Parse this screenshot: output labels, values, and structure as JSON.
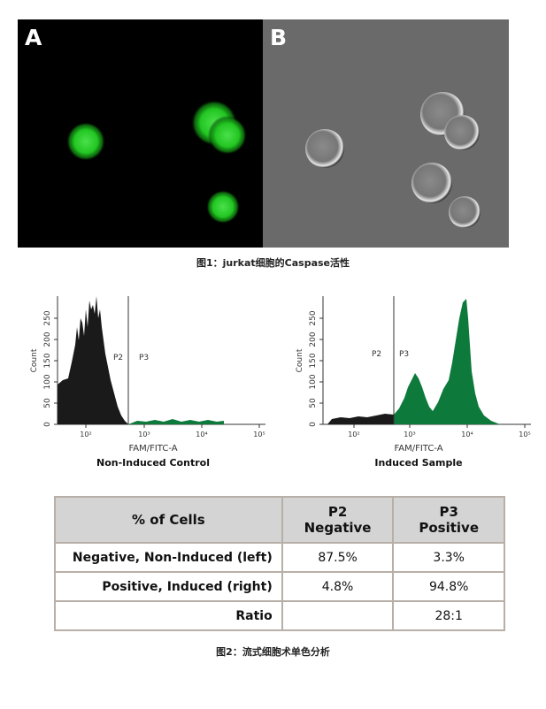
{
  "figure1": {
    "panel_a_letter": "A",
    "panel_b_letter": "B",
    "caption": "图1：jurkat细胞的Caspase活性"
  },
  "histograms": [
    {
      "ylabel": "Count",
      "yticks": [
        "0",
        "50",
        "100",
        "150",
        "200",
        "250"
      ],
      "xticks": [
        "10²",
        "10³",
        "10⁴",
        "10⁵"
      ],
      "xlabel": "FAM/FITC-A",
      "gate_left": "P2",
      "gate_right": "P3",
      "subtitle": "Non-Induced Control",
      "negative_color": "#1a1a1a",
      "positive_color": "#0d7a3c"
    },
    {
      "ylabel": "Count",
      "yticks": [
        "0",
        "50",
        "100",
        "150",
        "200",
        "250"
      ],
      "xticks": [
        "10²",
        "10³",
        "10⁴",
        "10⁵"
      ],
      "xlabel": "FAM/FITC-A",
      "gate_left": "P2",
      "gate_right": "P3",
      "subtitle": "Induced Sample",
      "negative_color": "#1a1a1a",
      "positive_color": "#0d7a3c"
    }
  ],
  "table": {
    "header": {
      "col0": "% of Cells",
      "col1_line1": "P2",
      "col1_line2": "Negative",
      "col2_line1": "P3",
      "col2_line2": "Positive"
    },
    "rows": [
      {
        "label": "Negative, Non-Induced (left)",
        "p2": "87.5%",
        "p3": "3.3%"
      },
      {
        "label": "Positive, Induced (right)",
        "p2": "4.8%",
        "p3": "94.8%"
      },
      {
        "label": "Ratio",
        "p2": "",
        "p3": "28:1"
      }
    ]
  },
  "figure2": {
    "caption": "图2：流式细胞术单色分析"
  }
}
